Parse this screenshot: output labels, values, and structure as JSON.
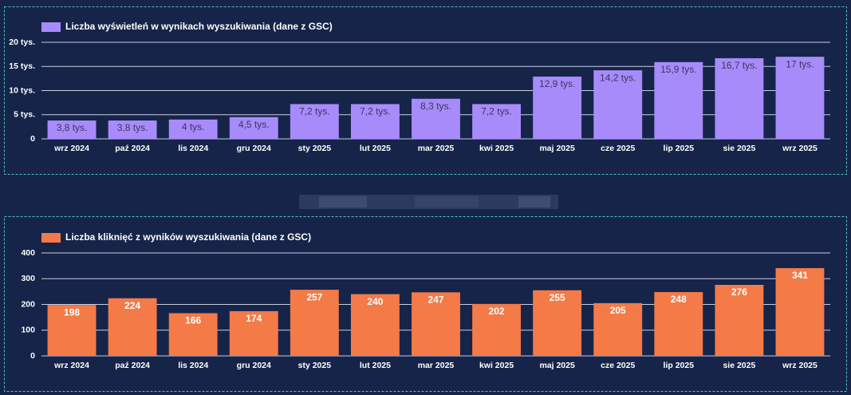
{
  "chart_data": [
    {
      "type": "bar",
      "categories": [
        "wrz 2024",
        "paź 2024",
        "lis 2024",
        "gru 2024",
        "sty 2025",
        "lut 2025",
        "mar 2025",
        "kwi 2025",
        "maj 2025",
        "cze 2025",
        "lip 2025",
        "sie 2025",
        "wrz 2025"
      ],
      "series": [
        {
          "name": "Liczba wyświetleń w wynikach wyszukiwania (dane z GSC)",
          "color": "#a78bfa",
          "values": [
            3800,
            3800,
            4000,
            4500,
            7200,
            7200,
            8300,
            7200,
            12900,
            14200,
            15900,
            16700,
            17000
          ],
          "value_labels": [
            "3,8 tys.",
            "3,8 tys.",
            "4 tys.",
            "4,5 tys.",
            "7,2 tys.",
            "7,2 tys.",
            "8,3 tys.",
            "7,2 tys.",
            "12,9 tys.",
            "14,2 tys.",
            "15,9 tys.",
            "16,7 tys.",
            "17 tys."
          ]
        }
      ],
      "ylim": [
        0,
        20000
      ],
      "yticks": [
        0,
        {
          "value": 5000,
          "label": "5 tys."
        },
        {
          "value": 10000,
          "label": "10 tys."
        },
        {
          "value": 15000,
          "label": "15 tys."
        },
        {
          "value": 20000,
          "label": "20 tys."
        }
      ],
      "grid": true
    },
    {
      "type": "bar",
      "categories": [
        "wrz 2024",
        "paź 2024",
        "lis 2024",
        "gru 2024",
        "sty 2025",
        "lut 2025",
        "mar 2025",
        "kwi 2025",
        "maj 2025",
        "cze 2025",
        "lip 2025",
        "sie 2025",
        "wrz 2025"
      ],
      "series": [
        {
          "name": "Liczba kliknięć z wyników wyszukiwania (dane z GSC)",
          "color": "#f47a48",
          "values": [
            198,
            224,
            166,
            174,
            257,
            240,
            247,
            202,
            255,
            205,
            248,
            276,
            341
          ]
        }
      ],
      "ylim": [
        0,
        400
      ],
      "yticks": [
        0,
        100,
        200,
        300,
        400
      ],
      "grid": true
    }
  ]
}
